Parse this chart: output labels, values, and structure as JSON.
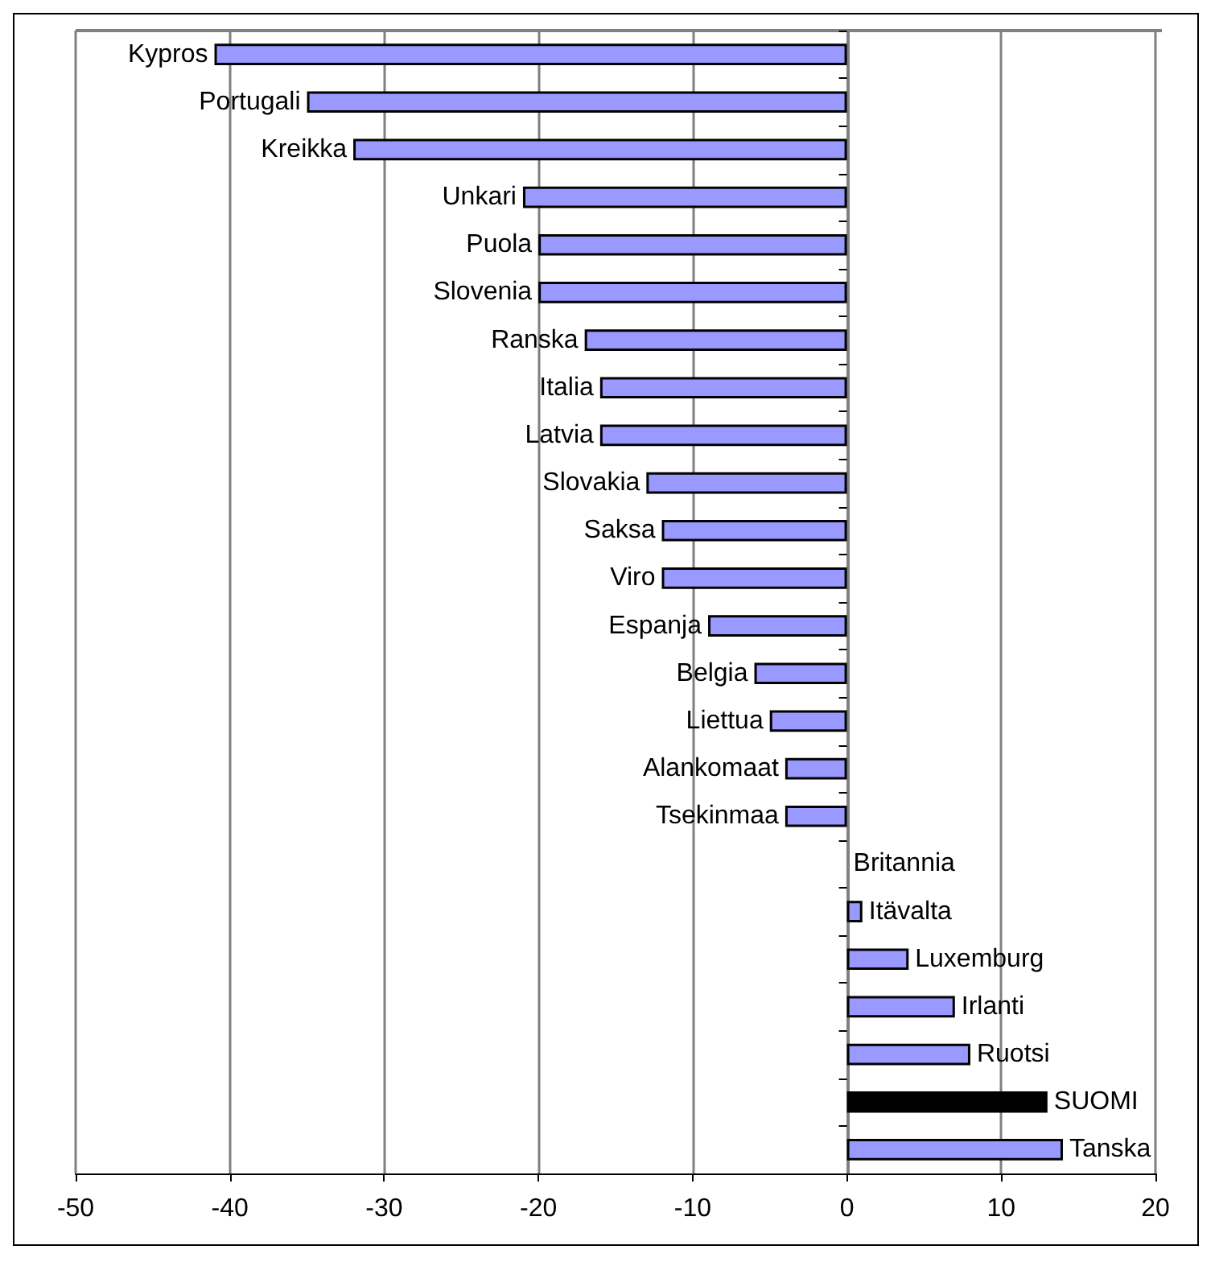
{
  "chart_data": {
    "type": "bar",
    "orientation": "horizontal",
    "categories": [
      "Kypros",
      "Portugali",
      "Kreikka",
      "Unkari",
      "Puola",
      "Slovenia",
      "Ranska",
      "Italia",
      "Latvia",
      "Slovakia",
      "Saksa",
      "Viro",
      "Espanja",
      "Belgia",
      "Liettua",
      "Alankomaat",
      "Tsekinmaa",
      "Britannia",
      "Itävalta",
      "Luxemburg",
      "Irlanti",
      "Ruotsi",
      "SUOMI",
      "Tanska"
    ],
    "values": [
      -41,
      -35,
      -32,
      -21,
      -20,
      -20,
      -17,
      -16,
      -16,
      -13,
      -12,
      -12,
      -9,
      -6,
      -5,
      -4,
      -4,
      0,
      1,
      4,
      7,
      8,
      13,
      14
    ],
    "colors": [
      "#9999ff",
      "#9999ff",
      "#9999ff",
      "#9999ff",
      "#9999ff",
      "#9999ff",
      "#9999ff",
      "#9999ff",
      "#9999ff",
      "#9999ff",
      "#9999ff",
      "#9999ff",
      "#9999ff",
      "#9999ff",
      "#9999ff",
      "#9999ff",
      "#9999ff",
      "#9999ff",
      "#9999ff",
      "#9999ff",
      "#9999ff",
      "#9999ff",
      "#000000",
      "#9999ff"
    ],
    "xlim": [
      -50,
      20
    ],
    "xticks": [
      -50,
      -40,
      -30,
      -20,
      -10,
      0,
      10,
      20
    ],
    "grid": "x",
    "tick_labels": "x"
  }
}
